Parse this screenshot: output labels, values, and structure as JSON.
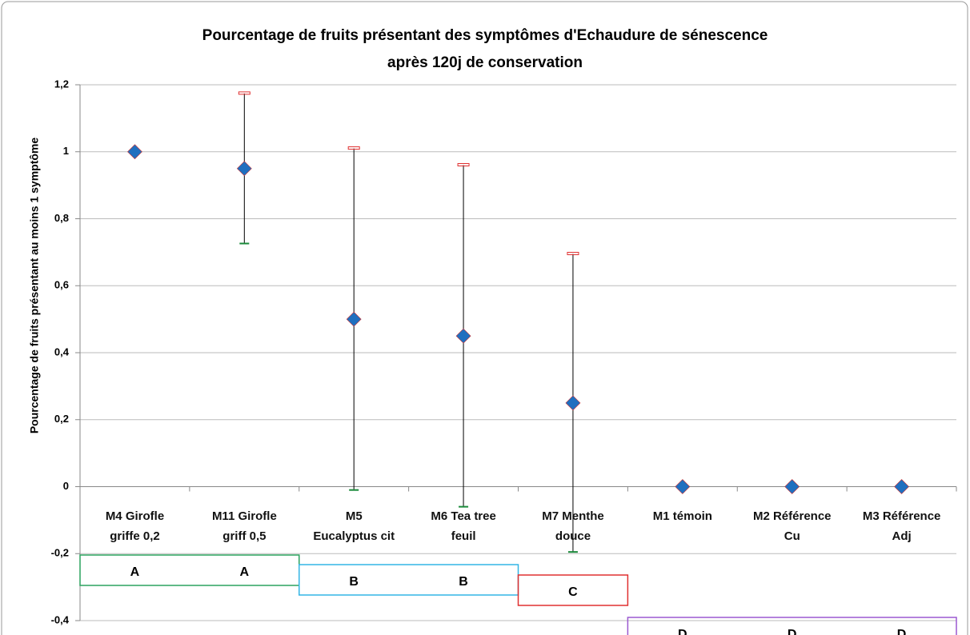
{
  "chart_data": {
    "type": "scatter",
    "title": "Pourcentage de fruits présentant des symptômes d'Echaudure de sénescence\naprès 120j de conservation",
    "y_label": "Pourcentage de fruits présentant au moins 1 symptôme",
    "categories": [
      "M4 Girofle\ngriffe 0,2",
      "M11 Girofle\ngriff 0,5",
      "M5\nEucalyptus cit",
      "M6 Tea tree\nfeuil",
      "M7 Menthe\ndouce",
      "M1 témoin",
      "M2 Référence\nCu",
      "M3 Référence\nAdj"
    ],
    "series": [
      {
        "color": "#1f6fbf",
        "values": [
          1,
          0.95,
          0.5,
          0.45,
          0.25,
          0,
          0,
          0
        ],
        "errors": [
          0,
          0.224,
          0.51,
          0.51,
          0.445,
          0,
          0,
          0
        ]
      }
    ],
    "upper_cap_color": "#e03030",
    "lower_cap_color": "#1a8a3a",
    "ylim": [
      -0.4,
      1.2
    ],
    "yticks": [
      {
        "value": -0.4,
        "label": "-0,4"
      },
      {
        "value": -0.2,
        "label": "-0,2"
      },
      0,
      {
        "value": 0.2,
        "label": "0,2"
      },
      {
        "value": 0.4,
        "label": "0,4"
      },
      {
        "value": 0.6,
        "label": "0,6"
      },
      {
        "value": 0.8,
        "label": "0,8"
      },
      1,
      {
        "value": 1.2,
        "label": "1,2"
      }
    ],
    "grid": true,
    "group_labels": [
      "A",
      "A",
      "B",
      "B",
      "C",
      "D",
      "D",
      "D"
    ],
    "group_colors": {
      "A": "#2ca25f",
      "B": "#33b5e5",
      "C": "#e03030",
      "D": "#9b59d0"
    }
  }
}
